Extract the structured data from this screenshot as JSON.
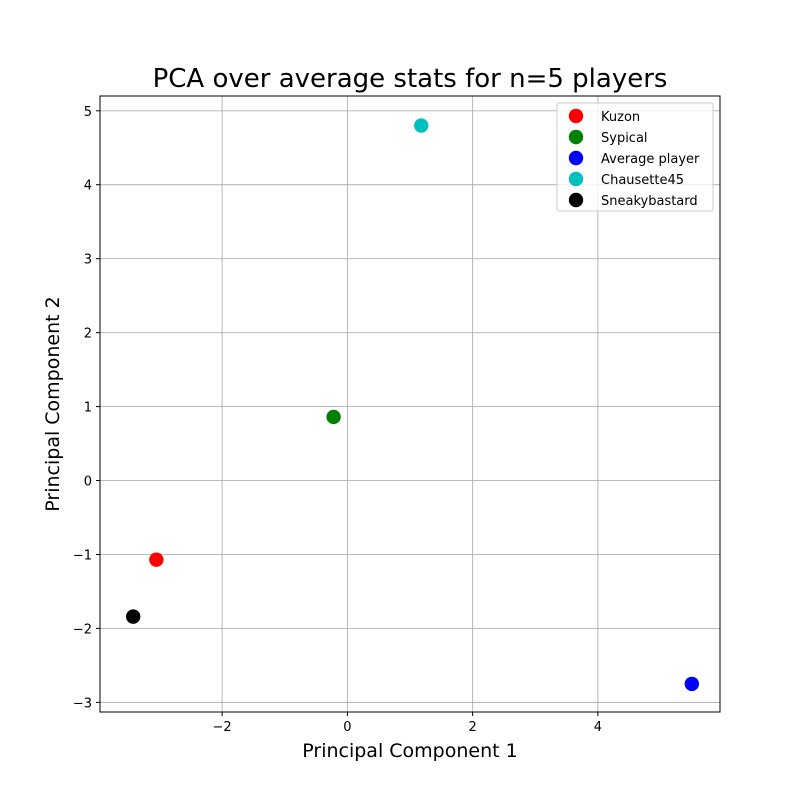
{
  "chart_data": {
    "type": "scatter",
    "title": "PCA over average stats for n=5 players",
    "xlabel": "Principal Component 1",
    "ylabel": "Principal Component 2",
    "xlim": [
      -3.95,
      5.95
    ],
    "ylim": [
      -3.13,
      5.2
    ],
    "xticks": [
      -2,
      0,
      2,
      4
    ],
    "yticks": [
      -3,
      -2,
      -1,
      0,
      1,
      2,
      3,
      4,
      5
    ],
    "grid": true,
    "legend_position": "top-right",
    "series": [
      {
        "name": "Kuzon",
        "color": "#ff0000",
        "x": [
          -3.05
        ],
        "y": [
          -1.07
        ]
      },
      {
        "name": "Sypical",
        "color": "#008000",
        "x": [
          -0.22
        ],
        "y": [
          0.86
        ]
      },
      {
        "name": "Average player",
        "color": "#0000ff",
        "x": [
          5.5
        ],
        "y": [
          -2.75
        ]
      },
      {
        "name": "Chausette45",
        "color": "#00bfbf",
        "x": [
          1.18
        ],
        "y": [
          4.8
        ]
      },
      {
        "name": "Sneakybastard",
        "color": "#000000",
        "x": [
          -3.42
        ],
        "y": [
          -1.84
        ]
      }
    ]
  }
}
